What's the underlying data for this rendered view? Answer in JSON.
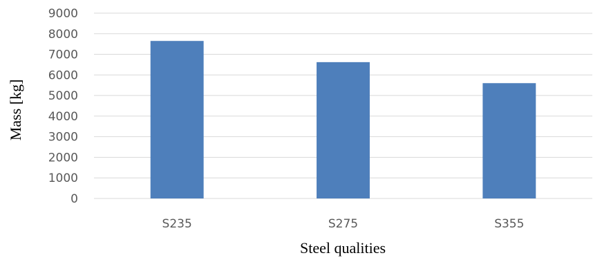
{
  "chart_data": {
    "type": "bar",
    "categories": [
      "S235",
      "S275",
      "S355"
    ],
    "series": [
      {
        "values": [
          7650,
          6620,
          5600
        ]
      }
    ],
    "title": "",
    "xlabel": "Steel qualities",
    "ylabel": "Mass [kg]",
    "ylim": [
      0,
      9000
    ],
    "yticks": [
      0,
      1000,
      2000,
      3000,
      4000,
      5000,
      6000,
      7000,
      8000,
      9000
    ],
    "grid": true,
    "legend": "none",
    "colors": {
      "bar": "#4e7fbb",
      "grid": "#d9d9d9",
      "tick_text": "#595959",
      "axis_title": "#000000"
    }
  }
}
